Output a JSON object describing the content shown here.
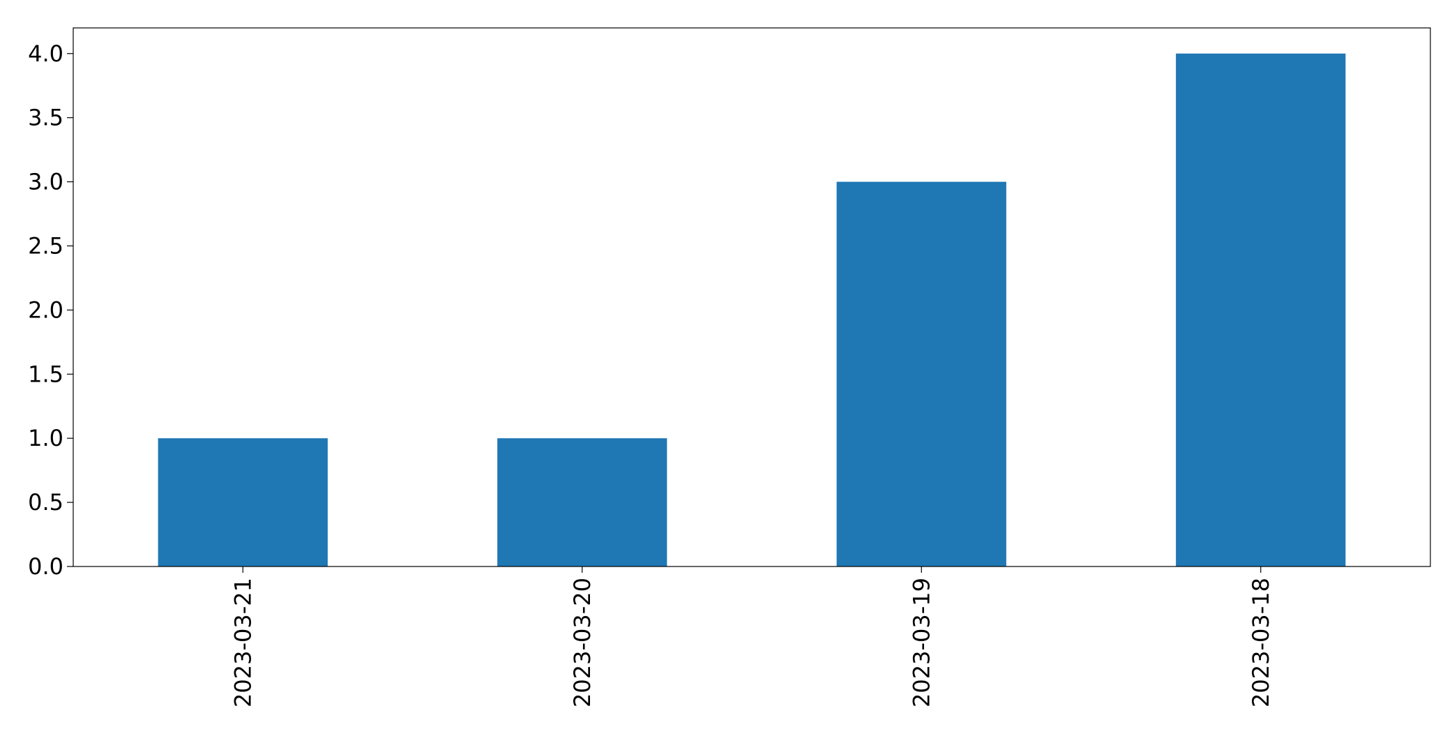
{
  "chart_data": {
    "type": "bar",
    "title": "",
    "xlabel": "",
    "ylabel": "",
    "categories": [
      "2023-03-21",
      "2023-03-20",
      "2023-03-19",
      "2023-03-18"
    ],
    "values": [
      1,
      1,
      3,
      4
    ],
    "ylim": [
      0,
      4.2
    ],
    "yticks": [
      "0.0",
      "0.5",
      "1.0",
      "1.5",
      "2.0",
      "2.5",
      "3.0",
      "3.5",
      "4.0"
    ],
    "bar_color": "#1f77b4",
    "grid": false,
    "legend": "none",
    "xtick_rotation": "vertical"
  }
}
